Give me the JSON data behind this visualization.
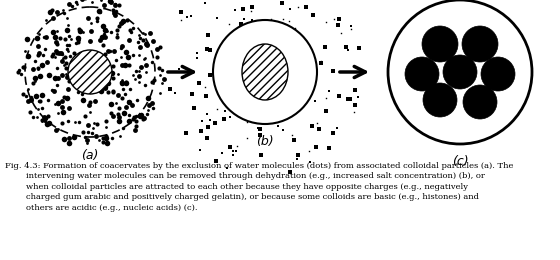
{
  "background_color": "#ffffff",
  "label_a": "(a)",
  "label_b": "(b)",
  "label_c": "(c)",
  "font_size_label": 9,
  "font_size_caption": 6.0,
  "caption_line1": "Fig. 4.3: Formation of coacervates by the exclusion of water molecules (dots) from associated colloidal particles (a). The",
  "caption_line2": "intervening water molecules can be removed through dehydration (e.g., increased salt concentration) (b), or",
  "caption_line3": "when colloidal particles are attracted to each other because they have opposite charges (e.g., negatively",
  "caption_line4": "charged gum arabic and positively charged gelatin), or because some colloids are basic (e.g., histones) and",
  "caption_line5": "others are acidic (e.g., nucleic acids) (c)."
}
